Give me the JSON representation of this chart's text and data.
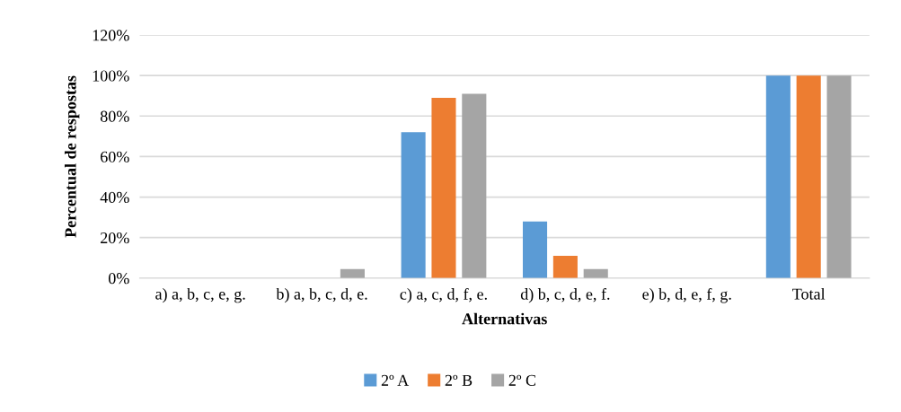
{
  "chart_data": {
    "type": "bar",
    "xlabel": "Alternativas",
    "ylabel": "Percentual de respostas",
    "categories": [
      "a) a, b, c, e, g.",
      "b) a, b, c, d, e.",
      "c) a, c, d, f, e.",
      "d) b, c, d, e, f.",
      "e) b, d, e, f, g.",
      "Total"
    ],
    "series": [
      {
        "name": "2º A",
        "color": "#5b9bd5",
        "values": [
          0,
          0,
          72,
          28,
          0,
          100
        ]
      },
      {
        "name": "2º B",
        "color": "#ed7d31",
        "values": [
          0,
          0,
          89,
          11,
          0,
          100
        ]
      },
      {
        "name": "2º C",
        "color": "#a5a5a5",
        "values": [
          0,
          4.5,
          91,
          4.5,
          0,
          100
        ]
      }
    ],
    "ylim": [
      0,
      120
    ],
    "yticks": [
      {
        "value": 0,
        "label": "0%"
      },
      {
        "value": 20,
        "label": "20%"
      },
      {
        "value": 40,
        "label": "40%"
      },
      {
        "value": 60,
        "label": "60%"
      },
      {
        "value": 80,
        "label": "80%"
      },
      {
        "value": 100,
        "label": "100%"
      },
      {
        "value": 120,
        "label": "120%"
      }
    ],
    "grid": "y",
    "legend": "bottom"
  }
}
